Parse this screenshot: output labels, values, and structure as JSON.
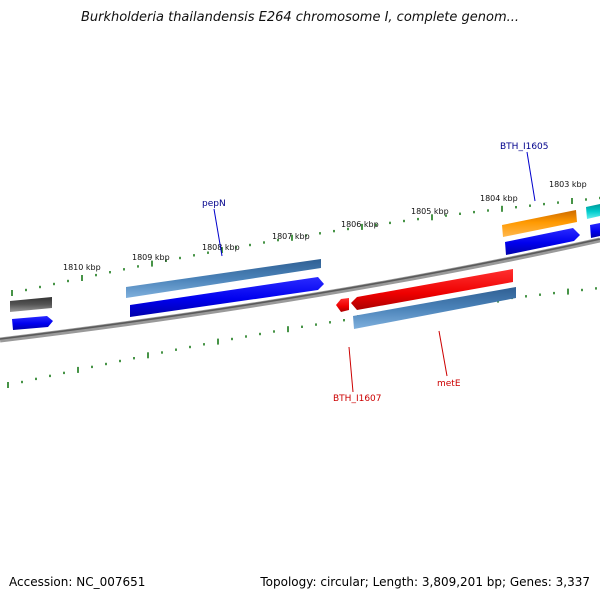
{
  "title": "Burkholderia thailandensis E264 chromosome I, complete genom...",
  "footer": {
    "accession": "Accession: NC_007651",
    "topology": "Topology: circular; Length: 3,809,201 bp; Genes: 3,337"
  },
  "colors": {
    "tick": "#1a7a1a",
    "backbone": "#7a7a7a",
    "gene_blue": "#0000ee",
    "gene_steel": "#4a82b8",
    "gene_red": "#ee0000",
    "gene_orange": "#ff9900",
    "gene_gray": "#555555",
    "gene_cyan": "#00cccc",
    "label_blue": "#00008b",
    "label_red": "#cc0000"
  },
  "ruler_labels": [
    "1810 kbp",
    "1809 kbp",
    "1808 kbp",
    "1807 kbp",
    "1806 kbp",
    "1805 kbp",
    "1804 kbp",
    "1803 kbp"
  ],
  "gene_labels": [
    {
      "text": "pepN",
      "strand": "forward"
    },
    {
      "text": "BTH_I1605",
      "strand": "forward"
    },
    {
      "text": "BTH_I1607",
      "strand": "reverse"
    },
    {
      "text": "metE",
      "strand": "reverse"
    }
  ]
}
